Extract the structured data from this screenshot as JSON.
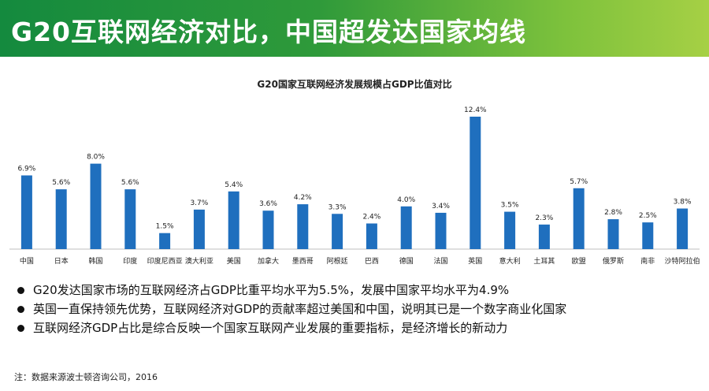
{
  "header": {
    "title": "G20互联网经济对比，中国超发达国家均线"
  },
  "chart_data": {
    "type": "bar",
    "title": "G20国家互联网经济发展规模占GDP比值对比",
    "categories": [
      "中国",
      "日本",
      "韩国",
      "印度",
      "印度尼西亚",
      "澳大利亚",
      "美国",
      "加拿大",
      "墨西哥",
      "阿根廷",
      "巴西",
      "德国",
      "法国",
      "英国",
      "意大利",
      "土耳其",
      "欧盟",
      "俄罗斯",
      "南非",
      "沙特阿拉伯"
    ],
    "values": [
      6.9,
      5.6,
      8.0,
      5.6,
      1.5,
      3.7,
      5.4,
      3.6,
      4.2,
      3.3,
      2.4,
      4.0,
      3.4,
      12.4,
      3.5,
      2.3,
      5.7,
      2.8,
      2.5,
      3.8
    ],
    "labels": [
      "6.9%",
      "5.6%",
      "8.0%",
      "5.6%",
      "1.5%",
      "3.7%",
      "5.4%",
      "3.6%",
      "4.2%",
      "3.3%",
      "2.4%",
      "4.0%",
      "3.4%",
      "12.4%",
      "3.5%",
      "2.3%",
      "5.7%",
      "2.8%",
      "2.5%",
      "3.8%"
    ],
    "xlabel": "",
    "ylabel": "",
    "ylim": [
      0,
      12.4
    ],
    "grid": false,
    "bar_color": "#1f6fbe"
  },
  "bullets": [
    "G20发达国家市场的互联网经济占GDP比重平均水平为5.5%，发展中国家平均水平为4.9%",
    "英国一直保持领先优势，互联网经济对GDP的贡献率超过美国和中国，说明其已是一个数字商业化国家",
    "互联网经济GDP占比是综合反映一个国家互联网产业发展的重要指标，是经济增长的新动力"
  ],
  "footnote": "注：数据来源波士顿咨询公司，2016"
}
